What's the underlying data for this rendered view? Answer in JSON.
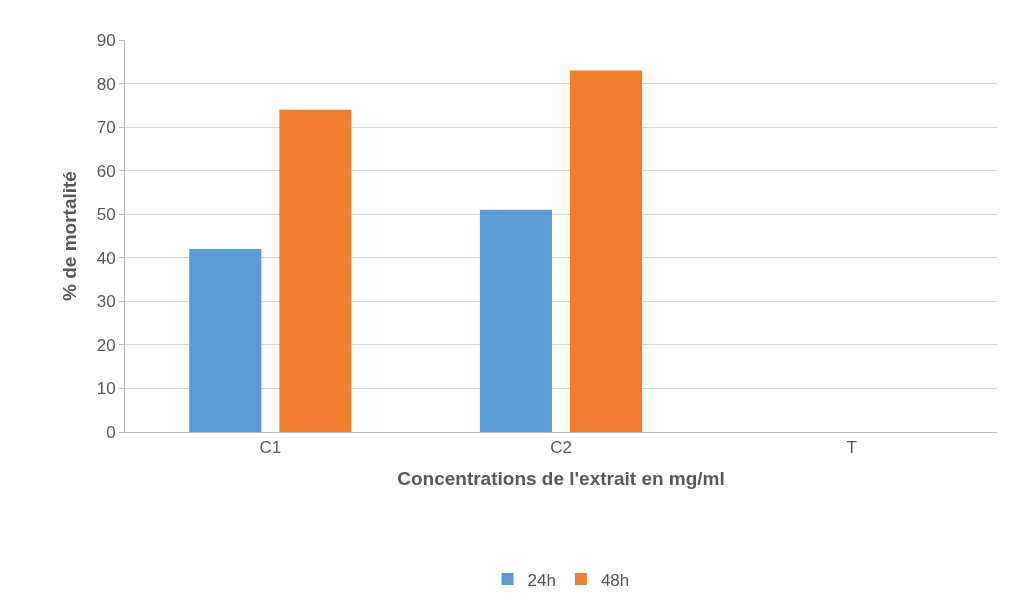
{
  "chart_data": {
    "type": "bar",
    "xlabel": "Concentrations de l'extrait en mg/ml",
    "ylabel": "% de mortalité",
    "categories": [
      "C1",
      "C2",
      "T"
    ],
    "series": [
      {
        "name": "24h",
        "color": "#5b9bd5",
        "values": [
          42,
          51,
          0
        ]
      },
      {
        "name": "48h",
        "color": "#f08030",
        "values": [
          74,
          83,
          0
        ]
      }
    ],
    "ylim": [
      0,
      90
    ],
    "yticks": [
      0,
      10,
      20,
      30,
      40,
      50,
      60,
      70,
      80,
      90
    ],
    "grid": "y",
    "legend": "bottom"
  }
}
